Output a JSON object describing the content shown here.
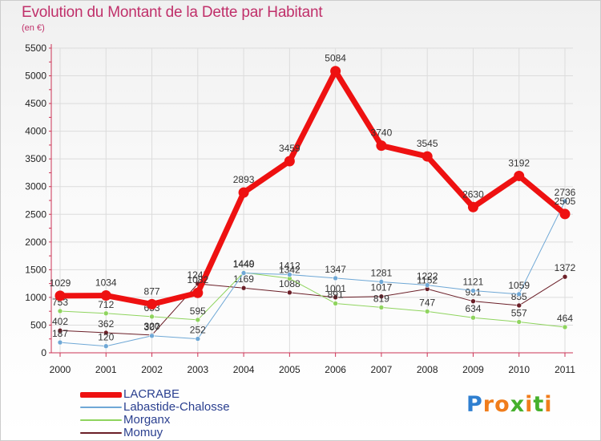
{
  "title": "Evolution du Montant de la Dette par Habitant",
  "subtitle": "(en €)",
  "logo": {
    "letters": [
      "P",
      "r",
      "o",
      "x",
      "i",
      "t",
      "i"
    ],
    "colors": [
      "#2f7fd0",
      "#f07d1c",
      "#f07d1c",
      "#45b02c",
      "#f07d1c",
      "#45b02c",
      "#f07d1c"
    ]
  },
  "chart_data": {
    "type": "line",
    "x": [
      "2000",
      "2001",
      "2002",
      "2003",
      "2004",
      "2005",
      "2006",
      "2007",
      "2008",
      "2009",
      "2010",
      "2011"
    ],
    "ylim": [
      0,
      5500
    ],
    "yticks": [
      0,
      500,
      1000,
      1500,
      2000,
      2500,
      3000,
      3500,
      4000,
      4500,
      5000,
      5500
    ],
    "grid": true,
    "legend_position": "bottom-left",
    "series": [
      {
        "name": "Momuy",
        "color": "#6b1f28",
        "width": 1,
        "values": [
          402,
          362,
          320,
          1245,
          1169,
          1088,
          1001,
          1017,
          1152,
          931,
          855,
          1372
        ],
        "labels": [
          "402",
          "362",
          "320",
          "1245",
          "1169",
          "1088",
          "1001",
          "1017",
          "1152",
          "931",
          "855",
          "1372"
        ]
      },
      {
        "name": "Morganx",
        "color": "#8fd45e",
        "width": 1,
        "values": [
          753,
          712,
          653,
          595,
          1449,
          1342,
          891,
          819,
          747,
          634,
          557,
          464
        ],
        "labels": [
          "753",
          "712",
          "653",
          "595",
          "1449",
          "1342",
          "891",
          "819",
          "747",
          "634",
          "557",
          "464"
        ]
      },
      {
        "name": "Labastide-Chalosse",
        "color": "#6fa8d6",
        "width": 1,
        "values": [
          187,
          120,
          307,
          252,
          1440,
          1412,
          1347,
          1281,
          1222,
          1121,
          1059,
          2736
        ],
        "labels": [
          "187",
          "120",
          "307",
          "252",
          "1440",
          "1412",
          "1347",
          "1281",
          "1222",
          "1121",
          "1059",
          "2736"
        ]
      },
      {
        "name": "LACRABE",
        "color": "#ee1111",
        "width": 7,
        "values": [
          1029,
          1034,
          877,
          1082,
          2893,
          3459,
          5084,
          3740,
          3545,
          2630,
          3192,
          2505
        ],
        "labels": [
          "1029",
          "1034",
          "877",
          "1082",
          "2893",
          "3459",
          "5084",
          "3740",
          "3545",
          "2630",
          "3192",
          "2505"
        ]
      }
    ],
    "legend": [
      "LACRABE",
      "Labastide-Chalosse",
      "Morganx",
      "Momuy"
    ]
  }
}
